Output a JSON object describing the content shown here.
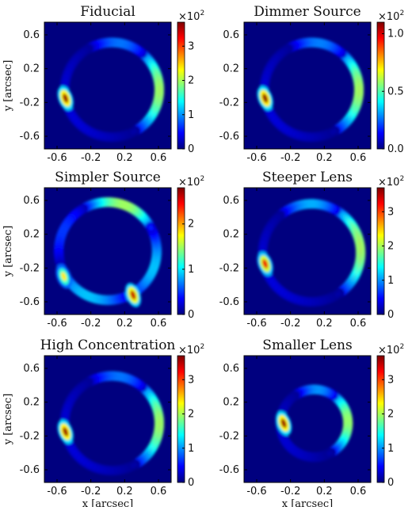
{
  "figure": {
    "xlabel": "x [arcsec]",
    "ylabel": "y [arcsec]",
    "x_ticks": [
      "-0.6",
      "-0.2",
      "0.2",
      "0.6"
    ],
    "y_ticks": [
      "0.6",
      "0.2",
      "-0.2",
      "-0.6"
    ],
    "colormap": [
      "#00007f",
      "#0000ff",
      "#007fff",
      "#00ffff",
      "#7fff7f",
      "#ffff00",
      "#ff7f00",
      "#ff0000",
      "#7f0000"
    ]
  },
  "chart_data": [
    {
      "type": "heatmap",
      "title": "Fiducial",
      "xlim": [
        -0.75,
        0.75
      ],
      "ylim": [
        -0.75,
        0.75
      ],
      "colorbar": {
        "range": [
          0,
          3.7
        ],
        "ticks": [
          "0",
          "1",
          "2",
          "3"
        ],
        "tick_values": [
          0,
          1,
          2,
          3
        ],
        "exponent_label": "×10",
        "exponent_power": "2"
      },
      "ring": {
        "cx": 0.05,
        "cy": -0.05,
        "r": 0.56
      },
      "features": [
        {
          "feature": "arc",
          "from_deg": 50,
          "to_deg": -60,
          "peak": 3.5
        },
        {
          "feature": "arc",
          "from_deg": 50,
          "to_deg": 120,
          "peak": 1.6
        },
        {
          "feature": "arc",
          "from_deg": 120,
          "to_deg": 300,
          "peak": 0.5
        },
        {
          "feature": "blob",
          "x": -0.5,
          "y": -0.15,
          "peak": 3.6
        }
      ]
    },
    {
      "type": "heatmap",
      "title": "Dimmer Source",
      "xlim": [
        -0.75,
        0.75
      ],
      "ylim": [
        -0.75,
        0.75
      ],
      "colorbar": {
        "range": [
          0,
          1.1
        ],
        "ticks": [
          "0.0",
          "0.5",
          "1.0"
        ],
        "tick_values": [
          0,
          0.5,
          1.0
        ],
        "exponent_label": "×10",
        "exponent_power": "2"
      },
      "ring": {
        "cx": 0.05,
        "cy": -0.05,
        "r": 0.56
      },
      "features": [
        {
          "feature": "arc",
          "from_deg": 50,
          "to_deg": -60,
          "peak": 1.05
        },
        {
          "feature": "arc",
          "from_deg": 50,
          "to_deg": 120,
          "peak": 0.5
        },
        {
          "feature": "arc",
          "from_deg": 120,
          "to_deg": 300,
          "peak": 0.15
        },
        {
          "feature": "blob",
          "x": -0.5,
          "y": -0.15,
          "peak": 1.08
        }
      ]
    },
    {
      "type": "heatmap",
      "title": "Simpler Source",
      "xlim": [
        -0.75,
        0.75
      ],
      "ylim": [
        -0.75,
        0.75
      ],
      "colorbar": {
        "range": [
          0,
          2.8
        ],
        "ticks": [
          "0",
          "1",
          "2"
        ],
        "tick_values": [
          0,
          1,
          2
        ],
        "exponent_label": "×10",
        "exponent_power": "2"
      },
      "ring": {
        "cx": 0.0,
        "cy": 0.0,
        "r": 0.58
      },
      "features": [
        {
          "feature": "arc",
          "from_deg": 30,
          "to_deg": 120,
          "peak": 2.7
        },
        {
          "feature": "arc",
          "from_deg": -60,
          "to_deg": 30,
          "peak": 1.6
        },
        {
          "feature": "arc",
          "from_deg": 120,
          "to_deg": 200,
          "peak": 0.9
        },
        {
          "feature": "arc",
          "from_deg": 200,
          "to_deg": 300,
          "peak": 1.6
        },
        {
          "feature": "blob",
          "x": 0.3,
          "y": -0.52,
          "peak": 2.6
        },
        {
          "feature": "blob",
          "x": -0.52,
          "y": -0.3,
          "peak": 1.8
        }
      ]
    },
    {
      "type": "heatmap",
      "title": "Steeper Lens",
      "xlim": [
        -0.75,
        0.75
      ],
      "ylim": [
        -0.75,
        0.75
      ],
      "colorbar": {
        "range": [
          0,
          3.7
        ],
        "ticks": [
          "0",
          "1",
          "2",
          "3"
        ],
        "tick_values": [
          0,
          1,
          2,
          3
        ],
        "exponent_label": "×10",
        "exponent_power": "2"
      },
      "ring": {
        "cx": 0.05,
        "cy": -0.02,
        "r": 0.58
      },
      "features": [
        {
          "feature": "arc",
          "from_deg": 60,
          "to_deg": -55,
          "peak": 3.5
        },
        {
          "feature": "arc",
          "from_deg": 60,
          "to_deg": 130,
          "peak": 2.0
        },
        {
          "feature": "arc",
          "from_deg": 130,
          "to_deg": 305,
          "peak": 0.5
        },
        {
          "feature": "blob",
          "x": -0.5,
          "y": -0.15,
          "peak": 3.3
        }
      ]
    },
    {
      "type": "heatmap",
      "title": "High Concentration",
      "xlim": [
        -0.75,
        0.75
      ],
      "ylim": [
        -0.75,
        0.75
      ],
      "colorbar": {
        "range": [
          0,
          3.7
        ],
        "ticks": [
          "0",
          "1",
          "2",
          "3"
        ],
        "tick_values": [
          0,
          1,
          2,
          3
        ],
        "exponent_label": "×10",
        "exponent_power": "2"
      },
      "ring": {
        "cx": 0.05,
        "cy": -0.05,
        "r": 0.56
      },
      "features": [
        {
          "feature": "arc",
          "from_deg": 50,
          "to_deg": -60,
          "peak": 3.5
        },
        {
          "feature": "arc",
          "from_deg": 50,
          "to_deg": 120,
          "peak": 1.6
        },
        {
          "feature": "arc",
          "from_deg": 120,
          "to_deg": 300,
          "peak": 0.5
        },
        {
          "feature": "blob",
          "x": -0.5,
          "y": -0.15,
          "peak": 3.6
        }
      ]
    },
    {
      "type": "heatmap",
      "title": "Smaller Lens",
      "xlim": [
        -0.75,
        0.75
      ],
      "ylim": [
        -0.75,
        0.75
      ],
      "colorbar": {
        "range": [
          0,
          3.7
        ],
        "ticks": [
          "0",
          "1",
          "2",
          "3"
        ],
        "tick_values": [
          0,
          1,
          2,
          3
        ],
        "exponent_label": "×10",
        "exponent_power": "2"
      },
      "ring": {
        "cx": 0.08,
        "cy": -0.05,
        "r": 0.4
      },
      "features": [
        {
          "feature": "arc",
          "from_deg": 55,
          "to_deg": -60,
          "peak": 3.5
        },
        {
          "feature": "arc",
          "from_deg": 55,
          "to_deg": 125,
          "peak": 1.8
        },
        {
          "feature": "arc",
          "from_deg": 125,
          "to_deg": 300,
          "peak": 0.5
        },
        {
          "feature": "blob",
          "x": -0.28,
          "y": -0.05,
          "peak": 3.6
        }
      ]
    }
  ]
}
